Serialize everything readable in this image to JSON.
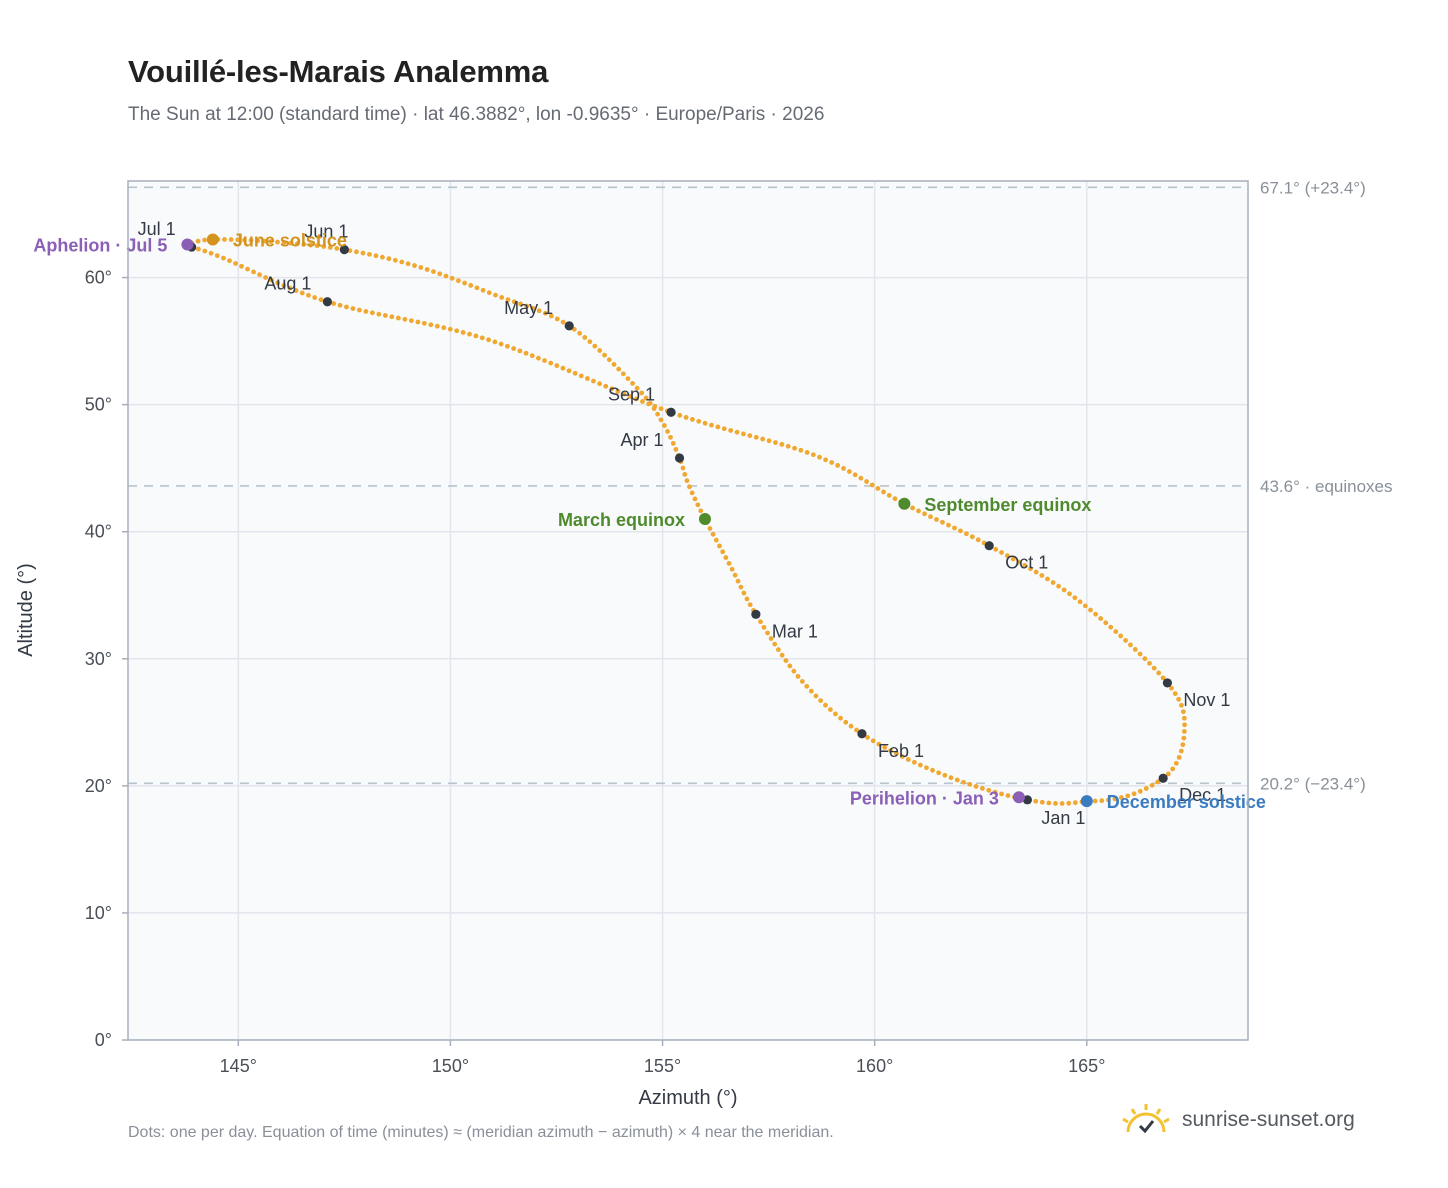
{
  "title": "Vouillé-les-Marais Analemma",
  "subtitle": "The Sun at 12:00 (standard time) · lat 46.3882°, lon -0.9635° · Europe/Paris · 2026",
  "footnote": "Dots: one per day. Equation of time (minutes) ≈ (meridian azimuth − azimuth) × 4 near the meridian.",
  "brand": {
    "name": "sunrise-sunset.org",
    "icon": "sun-check-icon"
  },
  "colors": {
    "curve": "#f0a830",
    "month_marker": "#333a44",
    "solstice_june": "#d4931f",
    "solstice_december": "#3b7bbf",
    "equinox": "#4f8a2d",
    "apsis": "#8a5fb5",
    "plot_bg": "#f8fafc",
    "grid": "#e2e6ec",
    "ref_line": "#b8c4cc"
  },
  "chart_data": {
    "type": "scatter",
    "title": "Vouillé-les-Marais Analemma",
    "xlabel": "Azimuth (°)",
    "ylabel": "Altitude (°)",
    "xlim": [
      142.4,
      168.8
    ],
    "ylim": [
      0,
      67.6
    ],
    "x_ticks": [
      {
        "v": 145,
        "label": "145°"
      },
      {
        "v": 150,
        "label": "150°"
      },
      {
        "v": 155,
        "label": "155°"
      },
      {
        "v": 160,
        "label": "160°"
      },
      {
        "v": 165,
        "label": "165°"
      }
    ],
    "y_ticks": [
      {
        "v": 0,
        "label": "0°"
      },
      {
        "v": 10,
        "label": "10°"
      },
      {
        "v": 20,
        "label": "20°"
      },
      {
        "v": 30,
        "label": "30°"
      },
      {
        "v": 40,
        "label": "40°"
      },
      {
        "v": 50,
        "label": "50°"
      },
      {
        "v": 60,
        "label": "60°"
      }
    ],
    "grid": true,
    "reference_lines": [
      {
        "y": 67.1,
        "label": "67.1° (+23.4°)"
      },
      {
        "y": 43.6,
        "label": "43.6° · equinoxes"
      },
      {
        "y": 20.2,
        "label": "20.2° (−23.4°)"
      }
    ],
    "curve": [
      [
        163.6,
        18.9
      ],
      [
        161.6,
        20.9
      ],
      [
        159.7,
        24.1
      ],
      [
        158.3,
        28.2
      ],
      [
        157.2,
        33.5
      ],
      [
        156.6,
        37.3
      ],
      [
        156.0,
        41.0
      ],
      [
        155.6,
        43.8
      ],
      [
        155.4,
        45.8
      ],
      [
        155.0,
        48.6
      ],
      [
        154.4,
        51.3
      ],
      [
        152.8,
        56.2
      ],
      [
        151.0,
        58.7
      ],
      [
        149.2,
        60.9
      ],
      [
        147.5,
        62.2
      ],
      [
        145.9,
        62.8
      ],
      [
        144.4,
        63.0
      ],
      [
        143.8,
        62.6
      ],
      [
        143.9,
        62.4
      ],
      [
        144.6,
        61.6
      ],
      [
        147.1,
        58.1
      ],
      [
        150.9,
        55.1
      ],
      [
        155.2,
        49.4
      ],
      [
        158.6,
        46.0
      ],
      [
        160.7,
        42.2
      ],
      [
        162.7,
        38.9
      ],
      [
        164.8,
        34.6
      ],
      [
        166.9,
        28.1
      ],
      [
        167.3,
        24.3
      ],
      [
        166.8,
        20.6
      ],
      [
        165.0,
        18.8
      ],
      [
        163.6,
        18.9
      ]
    ],
    "months": [
      {
        "label": "Jan 1",
        "x": 163.6,
        "y": 18.9,
        "pos": "below"
      },
      {
        "label": "Feb 1",
        "x": 159.7,
        "y": 24.1,
        "pos": "right-below"
      },
      {
        "label": "Mar 1",
        "x": 157.2,
        "y": 33.5,
        "pos": "right-below"
      },
      {
        "label": "Apr 1",
        "x": 155.4,
        "y": 45.8,
        "pos": "left-above"
      },
      {
        "label": "May 1",
        "x": 152.8,
        "y": 56.2,
        "pos": "left-above"
      },
      {
        "label": "Jun 1",
        "x": 147.5,
        "y": 62.2,
        "pos": "above-left"
      },
      {
        "label": "Jul 1",
        "x": 143.9,
        "y": 62.4,
        "pos": "left-above"
      },
      {
        "label": "Aug 1",
        "x": 147.1,
        "y": 58.1,
        "pos": "left-above"
      },
      {
        "label": "Sep 1",
        "x": 155.2,
        "y": 49.4,
        "pos": "left-above"
      },
      {
        "label": "Oct 1",
        "x": 162.7,
        "y": 38.9,
        "pos": "right-below"
      },
      {
        "label": "Nov 1",
        "x": 166.9,
        "y": 28.1,
        "pos": "right-below"
      },
      {
        "label": "Dec 1",
        "x": 166.8,
        "y": 20.6,
        "pos": "right-below"
      }
    ],
    "events": [
      {
        "label": "June solstice",
        "x": 144.4,
        "y": 63.0,
        "color": "#d4931f",
        "side": "right"
      },
      {
        "label": "December solstice",
        "x": 165.0,
        "y": 18.8,
        "color": "#3b7bbf",
        "side": "right"
      },
      {
        "label": "March equinox",
        "x": 156.0,
        "y": 41.0,
        "color": "#4f8a2d",
        "side": "left"
      },
      {
        "label": "September equinox",
        "x": 160.7,
        "y": 42.2,
        "color": "#4f8a2d",
        "side": "right"
      },
      {
        "label": "Aphelion · Jul 5",
        "x": 143.8,
        "y": 62.6,
        "color": "#8a5fb5",
        "side": "left"
      },
      {
        "label": "Perihelion · Jan 3",
        "x": 163.4,
        "y": 19.1,
        "color": "#8a5fb5",
        "side": "left"
      }
    ]
  }
}
